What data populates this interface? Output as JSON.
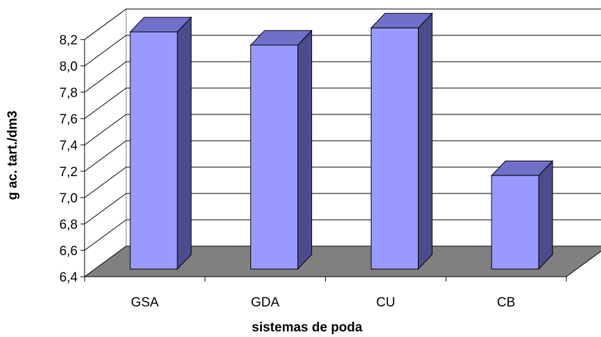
{
  "chart_data": {
    "type": "bar",
    "style": "3d-column",
    "title": "",
    "xlabel": "sistemas de poda",
    "ylabel": "g ac. tart./dm3",
    "categories": [
      "GSA",
      "GDA",
      "CU",
      "CB"
    ],
    "values": [
      8.2,
      8.1,
      8.23,
      7.11
    ],
    "ylim": [
      6.4,
      8.2
    ],
    "yticks": [
      "6,4",
      "6,6",
      "6,8",
      "7,0",
      "7,2",
      "7,4",
      "7,6",
      "7,8",
      "8,0",
      "8,2"
    ],
    "grid": true,
    "legend": "none",
    "colors": {
      "bar_front": "#9999ff",
      "bar_side": "#4c4c8c",
      "bar_top": "#7070c8",
      "floor": "#808080",
      "gridline": "#000000"
    }
  }
}
